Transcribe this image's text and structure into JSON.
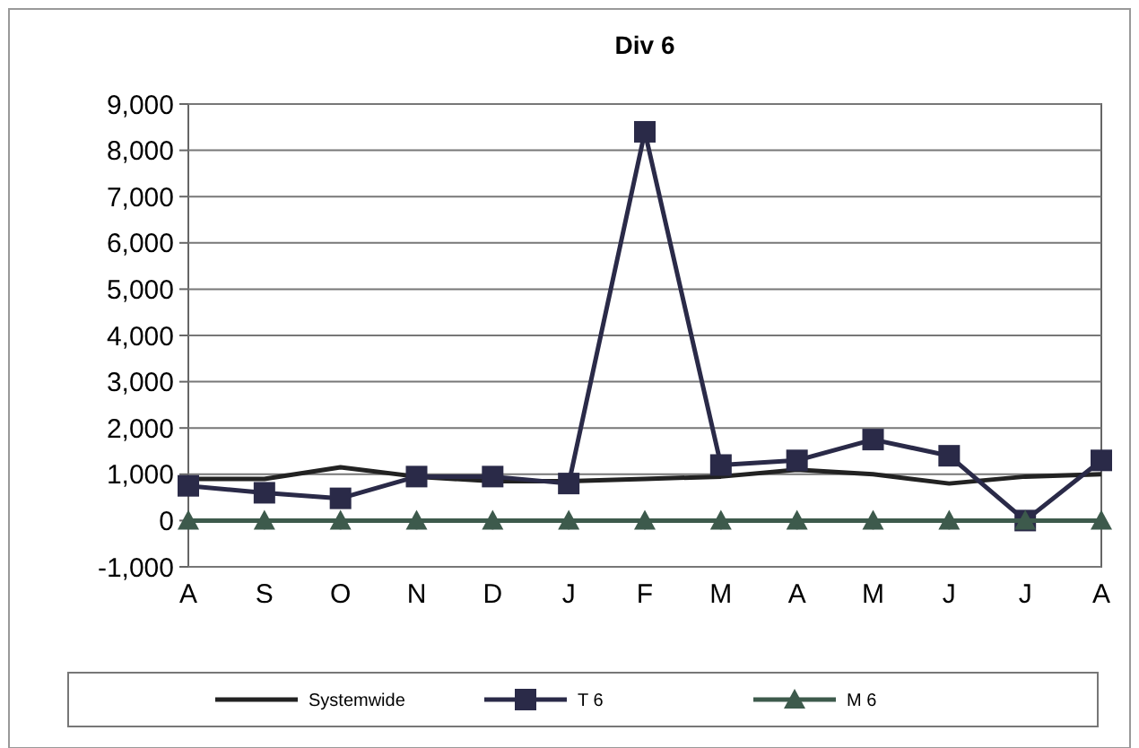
{
  "chart_data": {
    "type": "line",
    "title": "Div 6",
    "categories": [
      "A",
      "S",
      "O",
      "N",
      "D",
      "J",
      "F",
      "M",
      "A",
      "M",
      "J",
      "J",
      "A"
    ],
    "series": [
      {
        "name": "Systemwide",
        "color": "#222222",
        "marker": "none",
        "values": [
          900,
          900,
          1150,
          950,
          850,
          850,
          900,
          950,
          1100,
          1000,
          800,
          950,
          1000
        ]
      },
      {
        "name": "T 6",
        "color": "#2a2a48",
        "marker": "square",
        "values": [
          750,
          600,
          480,
          950,
          950,
          800,
          8400,
          1200,
          1300,
          1750,
          1400,
          0,
          1300
        ]
      },
      {
        "name": "M 6",
        "color": "#3d5a4c",
        "marker": "triangle",
        "values": [
          0,
          0,
          0,
          0,
          0,
          0,
          0,
          0,
          0,
          0,
          0,
          0,
          0
        ]
      }
    ],
    "ylim": [
      -1000,
      9000
    ],
    "yticks": [
      {
        "value": -1000,
        "label": "-1,000"
      },
      0,
      {
        "value": 1000,
        "label": "1,000"
      },
      {
        "value": 2000,
        "label": "2,000"
      },
      {
        "value": 3000,
        "label": "3,000"
      },
      {
        "value": 4000,
        "label": "4,000"
      },
      {
        "value": 5000,
        "label": "5,000"
      },
      {
        "value": 6000,
        "label": "6,000"
      },
      {
        "value": 7000,
        "label": "7,000"
      },
      {
        "value": 8000,
        "label": "8,000"
      },
      {
        "value": 9000,
        "label": "9,000"
      }
    ],
    "grid": "y",
    "legend": "bottom"
  }
}
